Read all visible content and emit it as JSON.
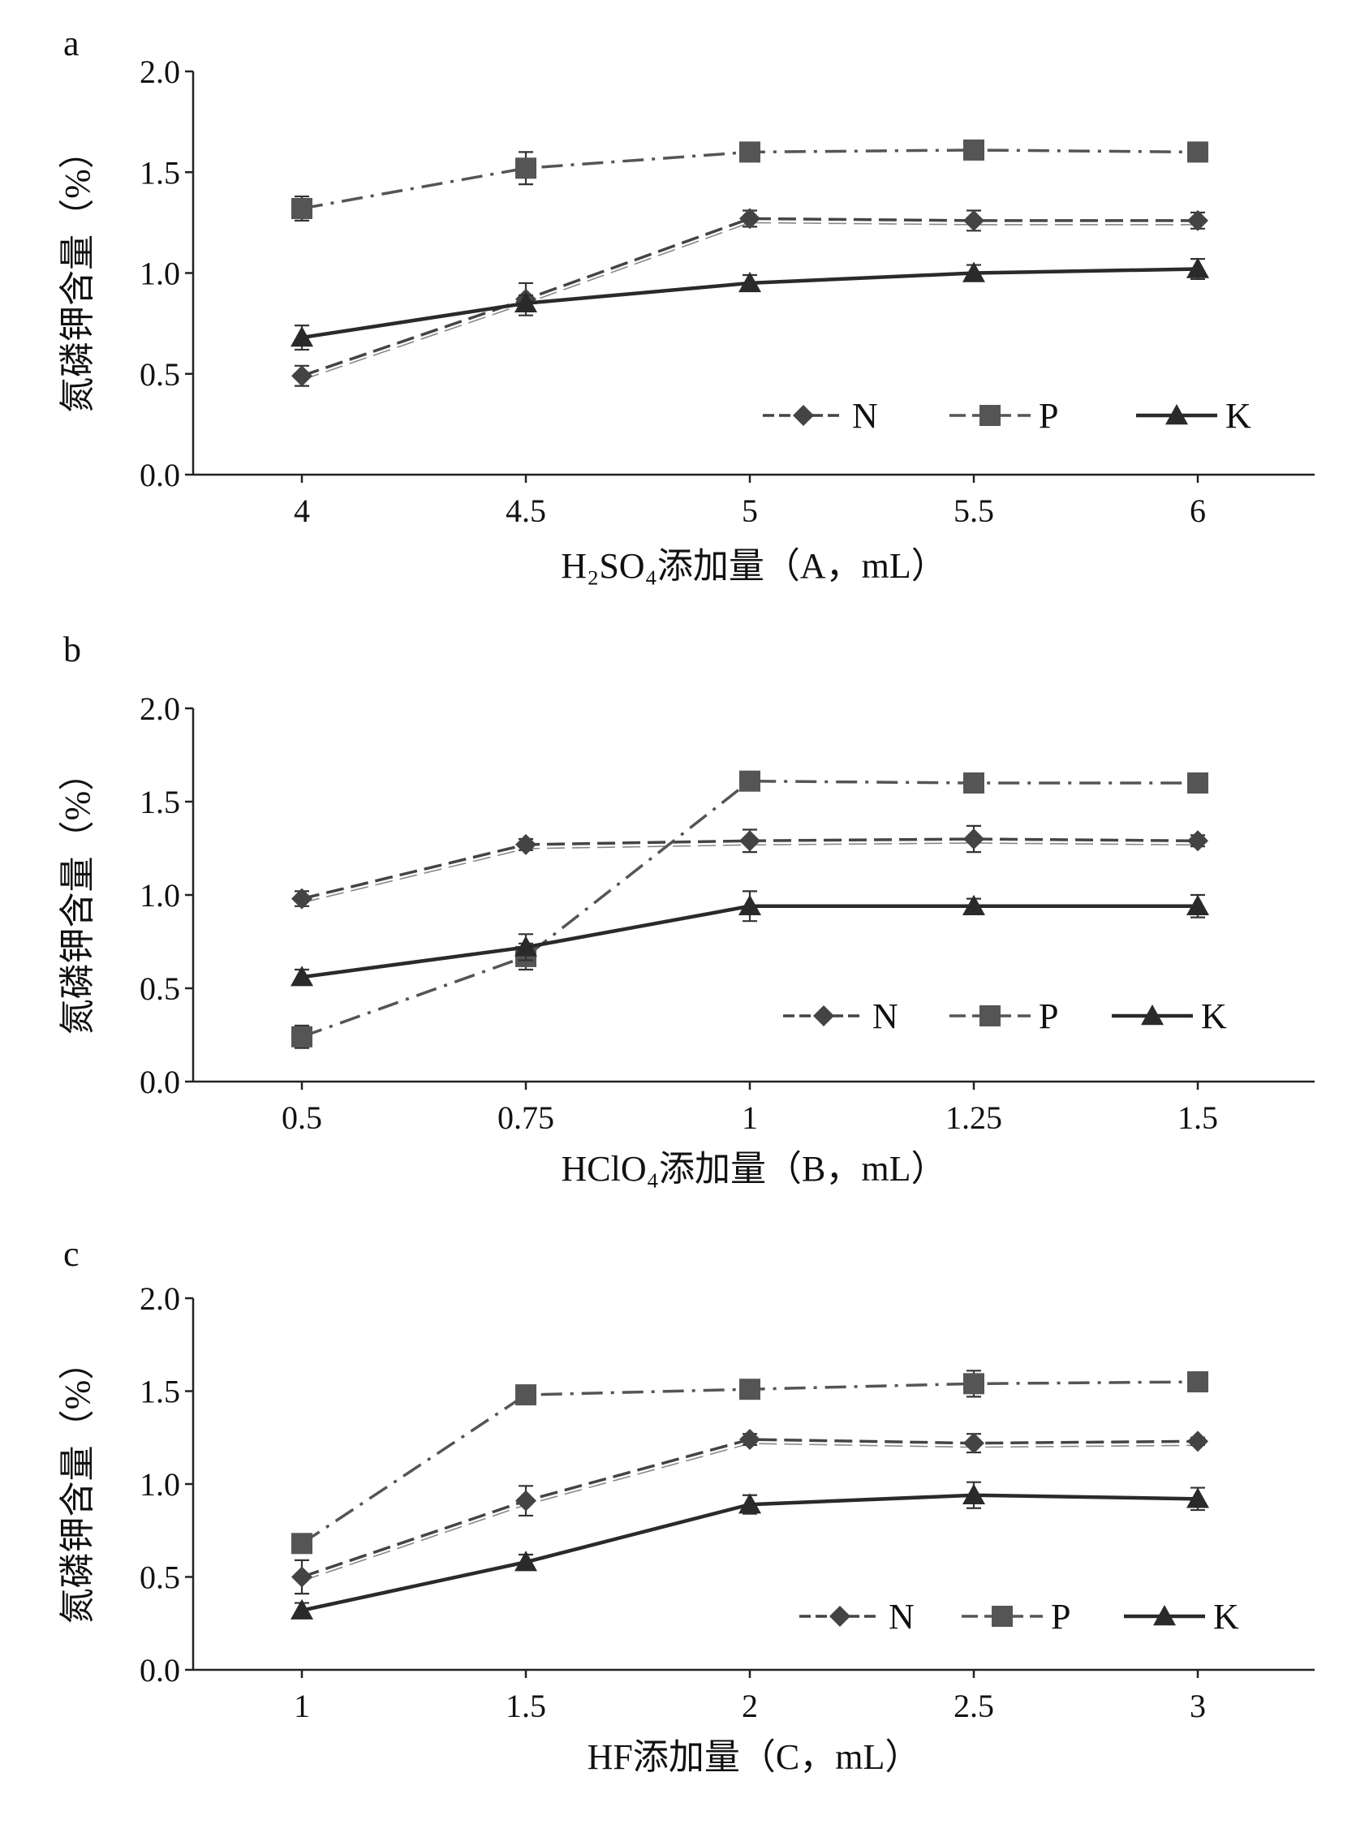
{
  "chart_data": [
    {
      "type": "line",
      "panel_label": "a",
      "x": [
        4,
        4.5,
        5,
        5.5,
        6
      ],
      "tick_labels": [
        "4",
        "4.5",
        "5",
        "5.5",
        "6"
      ],
      "xlabel": "H₂SO₄添加量（A，mL）",
      "ylabel": "氮磷钾含量（%）",
      "ylim": [
        0,
        2.0
      ],
      "yticks": [
        "0.0",
        "0.5",
        "1.0",
        "1.5",
        "2.0"
      ],
      "legend_position": "bottom-right",
      "series": [
        {
          "name": "N",
          "marker": "diamond",
          "line": "double-dash",
          "color": "#444444",
          "values": [
            0.49,
            0.87,
            1.27,
            1.26,
            1.26
          ],
          "errors": [
            0.05,
            0.08,
            0.04,
            0.05,
            0.04
          ]
        },
        {
          "name": "P",
          "marker": "square",
          "line": "dash-dot",
          "color": "#555555",
          "values": [
            1.32,
            1.52,
            1.6,
            1.61,
            1.6
          ],
          "errors": [
            0.06,
            0.08,
            0.03,
            0.04,
            0.03
          ]
        },
        {
          "name": "K",
          "marker": "triangle",
          "line": "solid",
          "color": "#2a2a2a",
          "values": [
            0.68,
            0.85,
            0.95,
            1.0,
            1.02
          ],
          "errors": [
            0.06,
            0.04,
            0.04,
            0.04,
            0.05
          ]
        }
      ]
    },
    {
      "type": "line",
      "panel_label": "b",
      "x": [
        0.5,
        0.75,
        1,
        1.25,
        1.5
      ],
      "tick_labels": [
        "0.5",
        "0.75",
        "1",
        "1.25",
        "1.5"
      ],
      "xlabel": "HClO₄添加量（B，mL）",
      "ylabel": "氮磷钾含量（%）",
      "ylim": [
        0,
        2.0
      ],
      "yticks": [
        "0.0",
        "0.5",
        "1.0",
        "1.5",
        "2.0"
      ],
      "legend_position": "bottom-right",
      "series": [
        {
          "name": "N",
          "marker": "diamond",
          "line": "double-dash",
          "color": "#444444",
          "values": [
            0.98,
            1.27,
            1.29,
            1.3,
            1.29
          ],
          "errors": [
            0.04,
            0.03,
            0.06,
            0.07,
            0.03
          ]
        },
        {
          "name": "P",
          "marker": "square",
          "line": "dash-dot",
          "color": "#555555",
          "values": [
            0.24,
            0.67,
            1.61,
            1.6,
            1.6
          ],
          "errors": [
            0.06,
            0.07,
            0.03,
            0.04,
            0.03
          ]
        },
        {
          "name": "K",
          "marker": "triangle",
          "line": "solid",
          "color": "#2a2a2a",
          "values": [
            0.56,
            0.72,
            0.94,
            0.94,
            0.94
          ],
          "errors": [
            0.04,
            0.07,
            0.08,
            0.04,
            0.06
          ]
        }
      ]
    },
    {
      "type": "line",
      "panel_label": "c",
      "x": [
        1,
        1.5,
        2,
        2.5,
        3
      ],
      "tick_labels": [
        "1",
        "1.5",
        "2",
        "2.5",
        "3"
      ],
      "xlabel": "HF添加量（C，mL）",
      "ylabel": "氮磷钾含量（%）",
      "ylim": [
        0,
        2.0
      ],
      "yticks": [
        "0.0",
        "0.5",
        "1.0",
        "1.5",
        "2.0"
      ],
      "legend_position": "bottom-right",
      "series": [
        {
          "name": "N",
          "marker": "diamond",
          "line": "double-dash",
          "color": "#444444",
          "values": [
            0.5,
            0.91,
            1.24,
            1.22,
            1.23
          ],
          "errors": [
            0.09,
            0.08,
            0.03,
            0.05,
            0.02
          ]
        },
        {
          "name": "P",
          "marker": "square",
          "line": "dash-dot",
          "color": "#555555",
          "values": [
            0.68,
            1.48,
            1.51,
            1.54,
            1.55
          ],
          "errors": [
            0.04,
            0.03,
            0.04,
            0.07,
            0.05
          ]
        },
        {
          "name": "K",
          "marker": "triangle",
          "line": "solid",
          "color": "#2a2a2a",
          "values": [
            0.32,
            0.58,
            0.89,
            0.94,
            0.92
          ],
          "errors": [
            0.04,
            0.04,
            0.05,
            0.07,
            0.06
          ]
        }
      ]
    }
  ]
}
